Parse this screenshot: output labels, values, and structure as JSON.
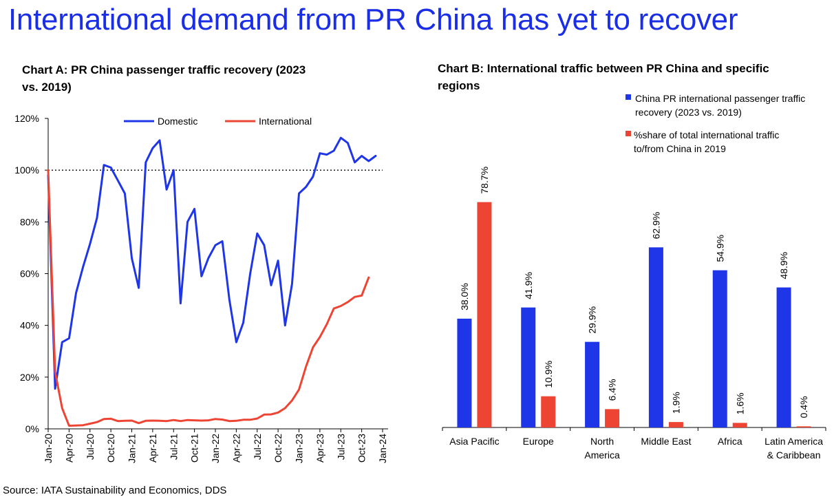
{
  "page": {
    "title": "International demand from PR China has yet to recover",
    "source": "Source: IATA Sustainability and Economics, DDS"
  },
  "colors": {
    "blue": "#1f35e8",
    "red": "#ee4433",
    "title_blue": "#1a2ee6"
  },
  "chart_data": [
    {
      "id": "chart-a",
      "type": "line",
      "title": "Chart A: PR China passenger traffic recovery (2023 vs. 2019)",
      "xlabel": "",
      "ylabel": "",
      "ylim": [
        0,
        120
      ],
      "y_ticks": [
        "0%",
        "20%",
        "40%",
        "60%",
        "80%",
        "100%",
        "120%"
      ],
      "x_tick_labels": [
        "Jan-20",
        "Apr-20",
        "Jul-20",
        "Oct-20",
        "Jan-21",
        "Apr-21",
        "Jul-21",
        "Oct-21",
        "Jan-22",
        "Apr-22",
        "Jul-22",
        "Oct-22",
        "Jan-23",
        "Apr-23",
        "Jul-23",
        "Oct-23",
        "Jan-24"
      ],
      "reference_line": 100,
      "legend": [
        "Domestic",
        "International"
      ],
      "legend_position": "top",
      "series": [
        {
          "name": "Domestic",
          "color": "#1f35e8",
          "values": [
            98,
            15.5,
            33.5,
            35,
            52.5,
            62.5,
            71.5,
            81.5,
            102,
            101,
            96,
            91,
            66,
            54.5,
            103,
            108.5,
            111.5,
            92.5,
            100,
            48.5,
            80,
            85,
            59,
            66,
            71,
            72.5,
            50,
            33.5,
            41,
            60,
            75.5,
            71,
            55.5,
            65,
            40,
            56,
            91,
            93.5,
            97.5,
            106.5,
            106,
            107.5,
            112.5,
            110.5,
            103,
            105.5,
            103.5,
            105.5
          ]
        },
        {
          "name": "International",
          "color": "#ee4433",
          "values": [
            100,
            22,
            8,
            1.2,
            1.3,
            1.4,
            2,
            2.6,
            3.8,
            3.9,
            3,
            3.1,
            3.2,
            2.2,
            3.1,
            3.2,
            3.1,
            3,
            3.4,
            3,
            3.4,
            3.3,
            3.2,
            3.3,
            3.8,
            3.6,
            3,
            3.1,
            3.5,
            3.5,
            4,
            5.5,
            5.6,
            6.3,
            8,
            11,
            15.2,
            24,
            31.5,
            35.5,
            40.5,
            46.5,
            47.5,
            49,
            51,
            51.5,
            58.5
          ]
        }
      ]
    },
    {
      "id": "chart-b",
      "type": "bar",
      "title": "Chart B: International traffic between PR China and specific regions",
      "categories": [
        [
          "Asia Pacific"
        ],
        [
          "Europe"
        ],
        [
          "North",
          "America"
        ],
        [
          "Middle East"
        ],
        [
          "Africa"
        ],
        [
          "Latin America",
          "& Caribbean"
        ]
      ],
      "ylim": [
        0,
        100
      ],
      "legend_position": "top-right",
      "series": [
        {
          "name": "China PR international passenger traffic recovery (2023 vs. 2019)",
          "legend_lines": [
            "China PR international passenger traffic",
            "recovery (2023 vs. 2019)"
          ],
          "color": "#1f35e8",
          "values": [
            38.0,
            41.9,
            29.9,
            62.9,
            54.9,
            48.9
          ],
          "labels": [
            "38.0%",
            "41.9%",
            "29.9%",
            "62.9%",
            "54.9%",
            "48.9%"
          ]
        },
        {
          "name": "%share of total international traffic to/from China in 2019",
          "legend_lines": [
            "%share of total international traffic",
            "to/from China in 2019"
          ],
          "color": "#ee4433",
          "values": [
            78.7,
            10.9,
            6.4,
            1.9,
            1.6,
            0.4
          ],
          "labels": [
            "78.7%",
            "10.9%",
            "6.4%",
            "1.9%",
            "1.6%",
            "0.4%"
          ]
        }
      ]
    }
  ]
}
